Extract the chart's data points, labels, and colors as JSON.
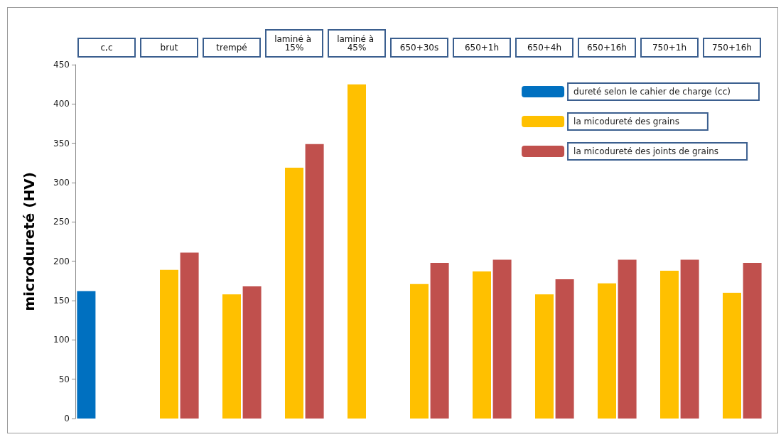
{
  "chart_data": {
    "type": "bar",
    "categories": [
      "c,c",
      "brut",
      "trempé",
      "laminé à 15%",
      "laminé à 45%",
      "650+30s",
      "650+1h",
      "650+4h",
      "650+16h",
      "750+1h",
      "750+16h"
    ],
    "ylabel": "microdureté (HV)",
    "series": [
      {
        "name": "dureté selon le cahier de charge (cc)",
        "color": "#0070c0",
        "values": [
          162,
          null,
          null,
          null,
          null,
          null,
          null,
          null,
          null,
          null,
          null
        ]
      },
      {
        "name": "la micodureté des grains",
        "color": "#ffc000",
        "values": [
          null,
          189,
          158,
          319,
          425,
          171,
          187,
          158,
          172,
          188,
          160
        ]
      },
      {
        "name": "la micodureté des joints de grains",
        "color": "#c0504d",
        "values": [
          null,
          211,
          168,
          349,
          null,
          198,
          202,
          177,
          202,
          202,
          198
        ]
      }
    ],
    "ylim": [
      0,
      450
    ],
    "yticks": [
      0,
      50,
      100,
      150,
      200,
      250,
      300,
      350,
      400,
      450
    ],
    "grid": false,
    "legend": "top right"
  }
}
